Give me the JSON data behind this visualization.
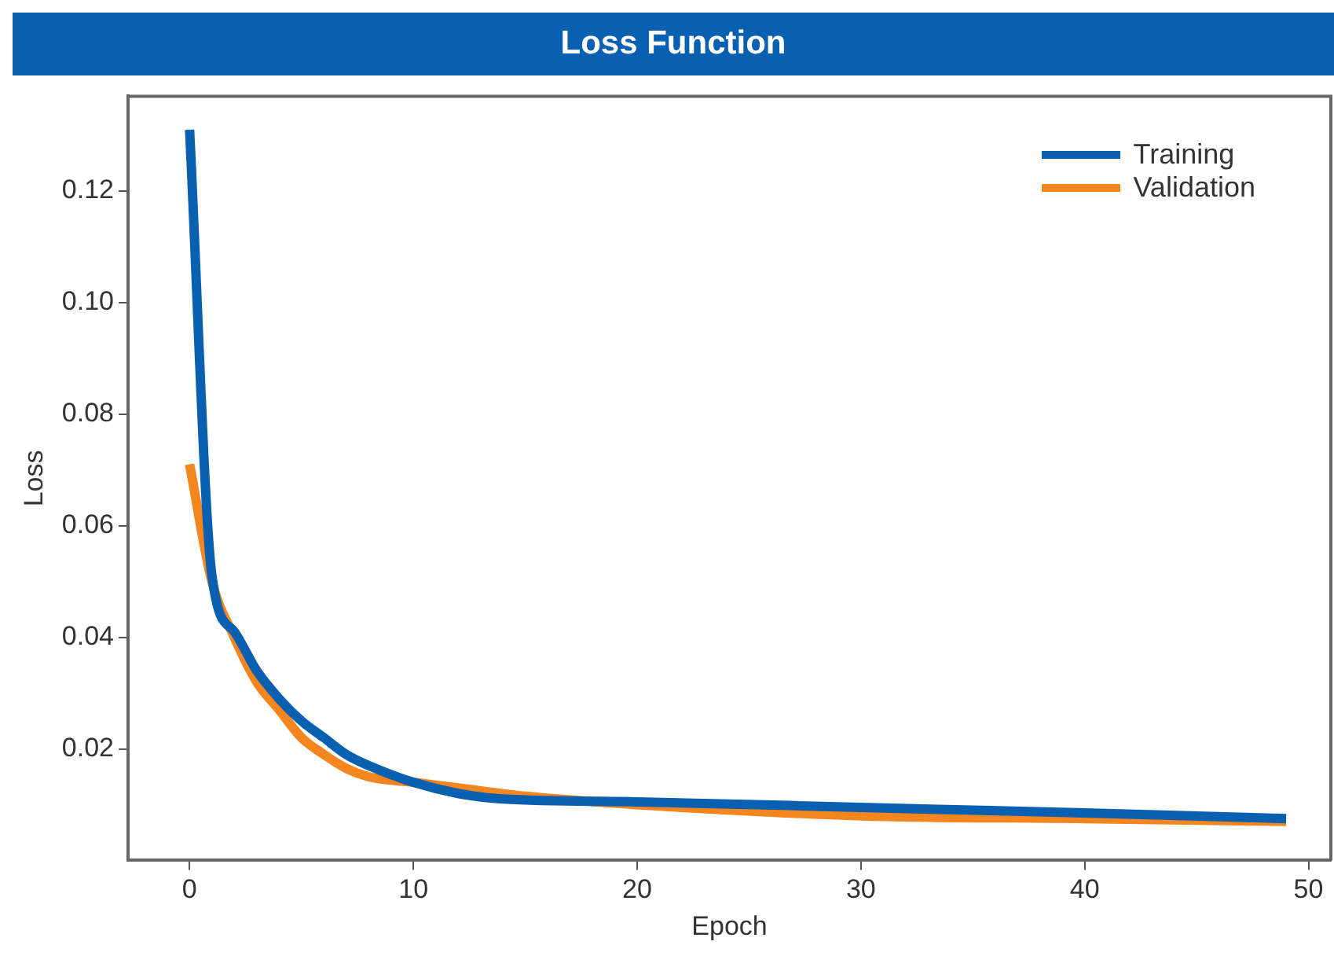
{
  "chart_data": {
    "type": "line",
    "title": "Loss Function",
    "xlabel": "Epoch",
    "ylabel": "Loss",
    "xlim": [
      -2.75,
      51
    ],
    "xticks": [
      0,
      10,
      20,
      30,
      40,
      50
    ],
    "ylim": [
      0,
      0.137
    ],
    "yticks": [
      0.02,
      0.04,
      0.06,
      0.08,
      {
        "value": 0.1,
        "label": "0.10"
      },
      0.12
    ],
    "grid": false,
    "legend": "top right",
    "marker": "none",
    "line_style": "solid",
    "series": [
      {
        "name": "Training",
        "color": "#0a60b0",
        "x": [
          0,
          1,
          2,
          3,
          4,
          5,
          6,
          7,
          8,
          10,
          12,
          14,
          20,
          30,
          40,
          49
        ],
        "values": [
          0.131,
          0.051,
          0.041,
          0.034,
          0.029,
          0.025,
          0.022,
          0.019,
          0.017,
          0.014,
          0.012,
          0.011,
          0.0105,
          0.0095,
          0.0085,
          0.0075
        ]
      },
      {
        "name": "Validation",
        "color": "#f5851f",
        "x": [
          0,
          1,
          2,
          3,
          4,
          5,
          6,
          7,
          8,
          10,
          12,
          15,
          20,
          30,
          40,
          49
        ],
        "values": [
          0.071,
          0.05,
          0.04,
          0.032,
          0.027,
          0.022,
          0.019,
          0.0165,
          0.015,
          0.014,
          0.013,
          0.0115,
          0.01,
          0.008,
          0.0075,
          0.007
        ]
      }
    ]
  }
}
